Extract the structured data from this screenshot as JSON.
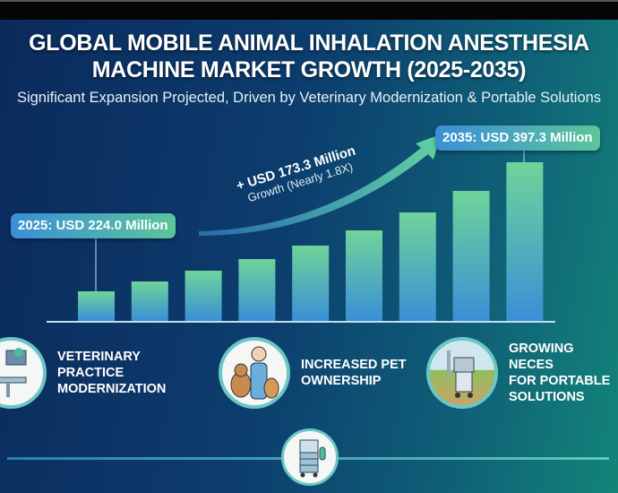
{
  "header": {
    "title_line1": "GLOBAL MOBILE ANIMAL INHALATION ANESTHESIA",
    "title_line2": "MACHINE MARKET GROWTH (2025-2035)",
    "subtitle": "Significant Expansion Projected, Driven by Veterinary Modernization & Portable Solutions"
  },
  "chart_data": {
    "type": "bar",
    "values": [
      224.0,
      237.2,
      251.7,
      267.3,
      285.4,
      305.8,
      329.9,
      358.8,
      397.3
    ],
    "annotations": {
      "start": "2025: USD 224.0 Million",
      "end": "2035: USD 397.3 Million",
      "growth_line1": "+ USD 173.3 Million",
      "growth_line2": "Growth (Nearly 1.8X)"
    },
    "grid": false,
    "colors": {
      "bar_top": "#6fd49a",
      "bar_bottom": "#3a8fd6",
      "arrow": "#5fd0a0"
    }
  },
  "drivers": [
    {
      "label": "VETERINARY\nPRACTICE\nMODERNIZATION",
      "icon": "veterinary-clinic-icon"
    },
    {
      "label": "INCREASED PET\nOWNERSHIP",
      "icon": "vet-with-pets-icon"
    },
    {
      "label": "GROWING NECES\nFOR PORTABLE\nSOLUTIONS",
      "icon": "portable-anesthesia-cart-icon"
    }
  ],
  "bottom_icon": "anesthesia-machine-icon"
}
